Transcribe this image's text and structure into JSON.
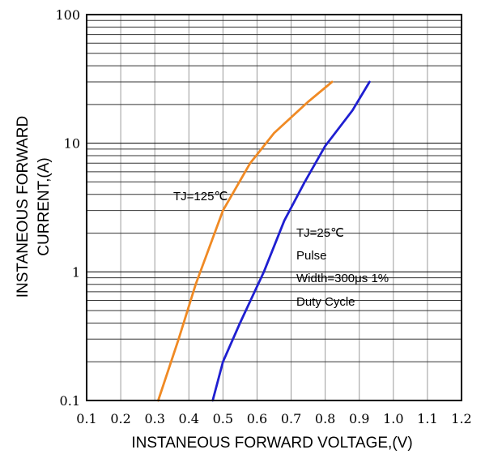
{
  "chart_data": {
    "type": "line",
    "title": "",
    "xlabel": "INSTANEOUS FORWARD VOLTAGE,(V)",
    "ylabel_lines": [
      "INSTANEOUS FORWARD",
      "CURRENT,(A)"
    ],
    "xlim": [
      0.1,
      1.2
    ],
    "ylim": [
      0.1,
      100
    ],
    "yscale": "log",
    "grid": true,
    "x_ticks": [
      0.1,
      0.2,
      0.3,
      0.4,
      0.5,
      0.6,
      0.7,
      0.8,
      0.9,
      1.0,
      1.1,
      1.2
    ],
    "x_tick_labels": [
      "0.1",
      "0.2",
      "0.3",
      "0.4",
      "0.5",
      "0.6",
      "0.7",
      "0.8",
      "0.9",
      "1.0",
      "1.1",
      "1.2"
    ],
    "y_ticks": [
      0.1,
      1,
      10,
      100
    ],
    "y_tick_labels": [
      "0.1",
      "1",
      "10",
      "100"
    ],
    "colors": {
      "tj125": "#f08a24",
      "tj25": "#1f1fd1"
    },
    "series": [
      {
        "key": "tj125",
        "name": "TJ=125℃",
        "points": [
          [
            0.31,
            0.1
          ],
          [
            0.37,
            0.3
          ],
          [
            0.42,
            0.8
          ],
          [
            0.5,
            3.0
          ],
          [
            0.58,
            7.0
          ],
          [
            0.65,
            12.0
          ],
          [
            0.75,
            21.0
          ],
          [
            0.82,
            30.0
          ]
        ]
      },
      {
        "key": "tj25",
        "name": "TJ=25℃",
        "points": [
          [
            0.47,
            0.1
          ],
          [
            0.5,
            0.2
          ],
          [
            0.55,
            0.4
          ],
          [
            0.62,
            1.0
          ],
          [
            0.68,
            2.5
          ],
          [
            0.74,
            5.0
          ],
          [
            0.8,
            9.5
          ],
          [
            0.88,
            18.0
          ],
          [
            0.93,
            30.0
          ]
        ]
      }
    ],
    "annotations": {
      "tj125": [
        "TJ=125℃"
      ],
      "tj25": [
        "TJ=25℃",
        "Pulse",
        "Width=300μs 1%",
        "Duty Cycle"
      ]
    }
  }
}
